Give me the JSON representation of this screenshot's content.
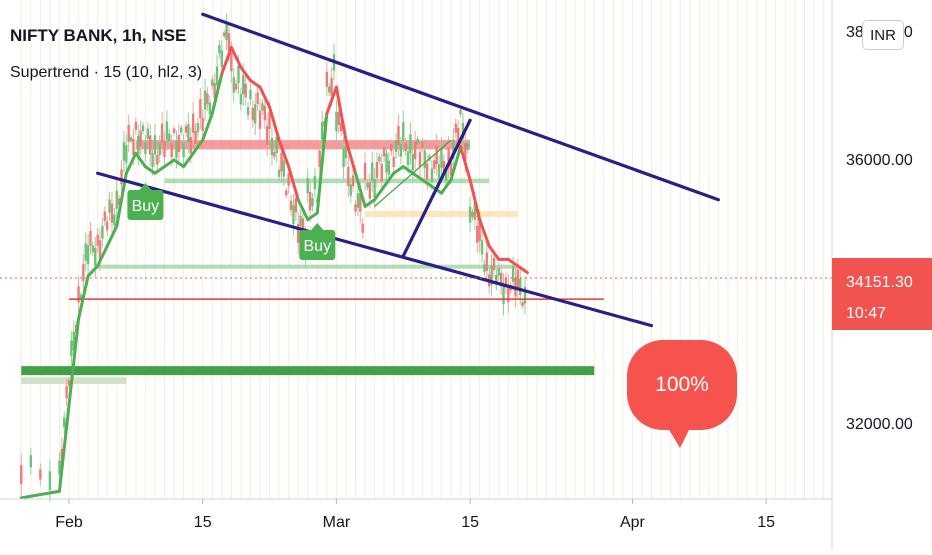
{
  "header": {
    "symbol_line": "NIFTY BANK, 1h, NSE",
    "indicator_line": "Supertrend · 15 (10, hl2, 3)"
  },
  "currency_button": "INR",
  "price_scale": {
    "ticks": [
      "38000.00",
      "36000.00",
      "32000.00"
    ],
    "last_price": "34151.30",
    "countdown": "10:47"
  },
  "time_scale": {
    "ticks": [
      {
        "label": "Feb",
        "date": "2022-02-01"
      },
      {
        "label": "15",
        "date": "2022-02-15"
      },
      {
        "label": "Mar",
        "date": "2022-03-01"
      },
      {
        "label": "15",
        "date": "2022-03-15"
      },
      {
        "label": "Apr",
        "date": "2022-04-01"
      },
      {
        "label": "15",
        "date": "2022-04-15"
      }
    ]
  },
  "colors": {
    "up": "#4caf50",
    "down": "#ef5350",
    "channel": "#2a1f87",
    "price_label": "#f05350",
    "text": "#131722"
  },
  "chart_data": {
    "type": "line",
    "title": "NIFTY BANK, 1h, NSE",
    "ylim": [
      31200,
      38400
    ],
    "x_range": [
      "2022-01-27",
      "2022-04-20"
    ],
    "series": [
      {
        "name": "Supertrend · 15 (10, hl2, 3)",
        "points": [
          {
            "x": "2022-01-27",
            "y": 30900,
            "trend": "up"
          },
          {
            "x": "2022-01-31",
            "y": 31000,
            "trend": "up"
          },
          {
            "x": "2022-02-01",
            "y": 32300,
            "trend": "up"
          },
          {
            "x": "2022-02-02",
            "y": 33600,
            "trend": "up"
          },
          {
            "x": "2022-02-03",
            "y": 34250,
            "trend": "up"
          },
          {
            "x": "2022-02-04",
            "y": 34400,
            "trend": "up"
          },
          {
            "x": "2022-02-05",
            "y": 34700,
            "trend": "up"
          },
          {
            "x": "2022-02-06",
            "y": 35000,
            "trend": "up"
          },
          {
            "x": "2022-02-07",
            "y": 35800,
            "trend": "up"
          },
          {
            "x": "2022-02-08",
            "y": 36100,
            "trend": "up"
          },
          {
            "x": "2022-02-09",
            "y": 35900,
            "trend": "up"
          },
          {
            "x": "2022-02-10",
            "y": 35800,
            "trend": "up"
          },
          {
            "x": "2022-02-11",
            "y": 35900,
            "trend": "up"
          },
          {
            "x": "2022-02-12",
            "y": 36000,
            "trend": "up"
          },
          {
            "x": "2022-02-13",
            "y": 35900,
            "trend": "up"
          },
          {
            "x": "2022-02-14",
            "y": 36100,
            "trend": "up"
          },
          {
            "x": "2022-02-15",
            "y": 36300,
            "trend": "up"
          },
          {
            "x": "2022-02-16",
            "y": 36700,
            "trend": "up"
          },
          {
            "x": "2022-02-17",
            "y": 37300,
            "trend": "up"
          },
          {
            "x": "2022-02-18",
            "y": 37700,
            "trend": "down"
          },
          {
            "x": "2022-02-19",
            "y": 37400,
            "trend": "down"
          },
          {
            "x": "2022-02-20",
            "y": 37200,
            "trend": "down"
          },
          {
            "x": "2022-02-21",
            "y": 37100,
            "trend": "down"
          },
          {
            "x": "2022-02-22",
            "y": 36800,
            "trend": "down"
          },
          {
            "x": "2022-02-23",
            "y": 36300,
            "trend": "down"
          },
          {
            "x": "2022-02-24",
            "y": 35900,
            "trend": "down"
          },
          {
            "x": "2022-02-25",
            "y": 35400,
            "trend": "down"
          },
          {
            "x": "2022-02-26",
            "y": 35100,
            "trend": "up"
          },
          {
            "x": "2022-02-27",
            "y": 35200,
            "trend": "up"
          },
          {
            "x": "2022-02-28",
            "y": 36700,
            "trend": "up"
          },
          {
            "x": "2022-03-01",
            "y": 37100,
            "trend": "down"
          },
          {
            "x": "2022-03-02",
            "y": 36300,
            "trend": "down"
          },
          {
            "x": "2022-03-03",
            "y": 35800,
            "trend": "down"
          },
          {
            "x": "2022-03-04",
            "y": 35300,
            "trend": "up"
          },
          {
            "x": "2022-03-05",
            "y": 35400,
            "trend": "up"
          },
          {
            "x": "2022-03-06",
            "y": 35600,
            "trend": "up"
          },
          {
            "x": "2022-03-07",
            "y": 35800,
            "trend": "up"
          },
          {
            "x": "2022-03-08",
            "y": 35900,
            "trend": "up"
          },
          {
            "x": "2022-03-09",
            "y": 35800,
            "trend": "up"
          },
          {
            "x": "2022-03-10",
            "y": 35700,
            "trend": "up"
          },
          {
            "x": "2022-03-11",
            "y": 35600,
            "trend": "up"
          },
          {
            "x": "2022-03-12",
            "y": 35500,
            "trend": "up"
          },
          {
            "x": "2022-03-13",
            "y": 35700,
            "trend": "up"
          },
          {
            "x": "2022-03-14",
            "y": 36200,
            "trend": "up"
          },
          {
            "x": "2022-03-15",
            "y": 35700,
            "trend": "down"
          },
          {
            "x": "2022-03-16",
            "y": 35100,
            "trend": "down"
          },
          {
            "x": "2022-03-17",
            "y": 34700,
            "trend": "down"
          },
          {
            "x": "2022-03-18",
            "y": 34500,
            "trend": "down"
          },
          {
            "x": "2022-03-19",
            "y": 34500,
            "trend": "down"
          },
          {
            "x": "2022-03-20",
            "y": 34400,
            "trend": "down"
          },
          {
            "x": "2022-03-21",
            "y": 34300,
            "trend": "down"
          }
        ]
      }
    ],
    "signals": [
      {
        "x": "2022-02-09",
        "label": "Buy"
      },
      {
        "x": "2022-02-27",
        "label": "Buy"
      }
    ],
    "drawings": {
      "channel_lines": [
        {
          "from": {
            "x": "2022-02-15",
            "y": 38200
          },
          "to": {
            "x": "2022-04-10",
            "y": 35400
          }
        },
        {
          "from": {
            "x": "2022-02-04",
            "y": 35800
          },
          "to": {
            "x": "2022-04-03",
            "y": 33500
          }
        },
        {
          "from": {
            "x": "2022-03-08",
            "y": 34550
          },
          "to": {
            "x": "2022-03-15",
            "y": 36600
          }
        }
      ],
      "horizontal_lines": [
        {
          "y": 33900,
          "from": "2022-02-01",
          "to": "2022-03-29",
          "color": "#e53935"
        },
        {
          "y": 32820,
          "from": "2022-01-27",
          "to": "2022-03-28",
          "color": "#43a047"
        }
      ],
      "zones": [
        {
          "y_from": 36300,
          "y_to": 36160,
          "from": "2022-02-08",
          "to": "2022-03-15",
          "color": "#f28b8b"
        },
        {
          "y_from": 35720,
          "y_to": 35650,
          "from": "2022-02-11",
          "to": "2022-03-17",
          "color": "#a5d6a7"
        },
        {
          "y_from": 35230,
          "y_to": 35140,
          "from": "2022-03-04",
          "to": "2022-03-20",
          "color": "#ffe0b2"
        },
        {
          "y_from": 34420,
          "y_to": 34360,
          "from": "2022-02-04",
          "to": "2022-03-20",
          "color": "#a5d6a7"
        },
        {
          "y_from": 32720,
          "y_to": 32620,
          "from": "2022-01-27",
          "to": "2022-02-07",
          "color": "#c8dcc0"
        }
      ],
      "callout": "100%"
    }
  }
}
